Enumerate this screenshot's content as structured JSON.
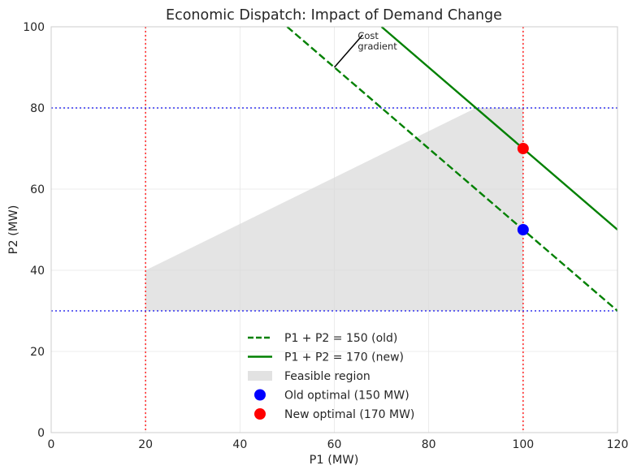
{
  "chart_data": {
    "type": "line",
    "title": "Economic Dispatch: Impact of Demand Change",
    "xlabel": "P1 (MW)",
    "ylabel": "P2 (MW)",
    "xlim": [
      0,
      120
    ],
    "ylim": [
      0,
      100
    ],
    "xticks": [
      0,
      20,
      40,
      60,
      80,
      100,
      120
    ],
    "yticks": [
      0,
      20,
      40,
      60,
      80,
      100
    ],
    "grid": true,
    "legend_position": "lower-center",
    "limits": {
      "p1_min": 20,
      "p1_max": 100,
      "p2_min": 30,
      "p2_max": 80,
      "vertical_color": "#ff3333",
      "horizontal_color": "#3333ee"
    },
    "feasible_region": {
      "name": "Feasible region",
      "color": "#d8d8d8",
      "points": [
        [
          20,
          40
        ],
        [
          90,
          80
        ],
        [
          100,
          80
        ],
        [
          100,
          30
        ],
        [
          20,
          30
        ]
      ]
    },
    "series": [
      {
        "name": "P1 + P2 = 150 (old)",
        "style": "dashed",
        "color": "#008000",
        "x": [
          50,
          120
        ],
        "y": [
          100,
          30
        ]
      },
      {
        "name": "P1 + P2 = 170 (new)",
        "style": "solid",
        "color": "#008000",
        "x": [
          70,
          120
        ],
        "y": [
          100,
          50
        ]
      }
    ],
    "points": [
      {
        "name": "Old optimal (150 MW)",
        "x": 100,
        "y": 50,
        "color": "#0000ff"
      },
      {
        "name": "New optimal (170 MW)",
        "x": 100,
        "y": 70,
        "color": "#ff0000"
      }
    ],
    "annotation": {
      "text_lines": [
        "Cost",
        "gradient"
      ],
      "from": [
        60,
        90
      ],
      "to": [
        66,
        98
      ]
    }
  }
}
